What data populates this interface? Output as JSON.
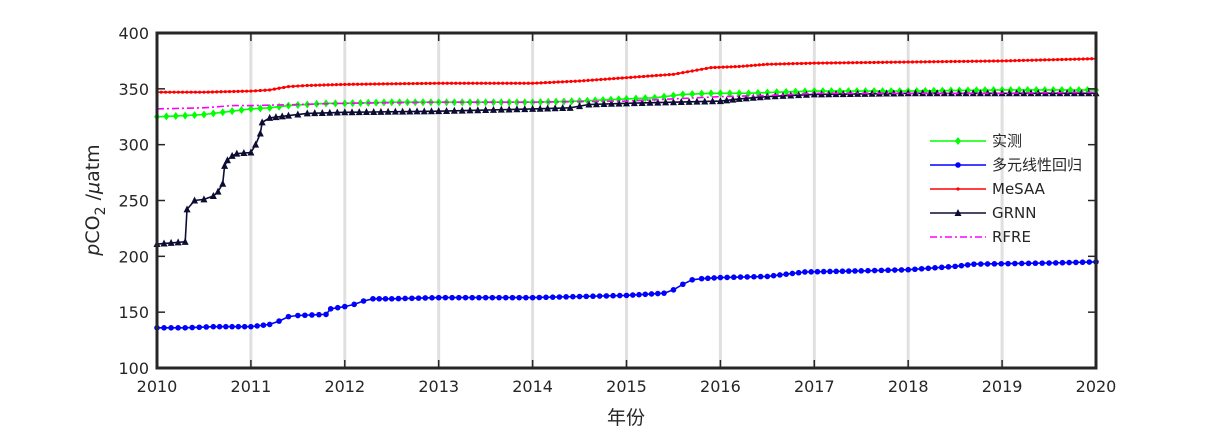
{
  "chart_data": {
    "type": "line",
    "title": "",
    "xlabel": "年份",
    "ylabel_parts": {
      "p": "p",
      "co": "CO",
      "sub": "2",
      "sep": " /",
      "mu": "μ",
      "unit": "atm"
    },
    "xlim": [
      2010,
      2020
    ],
    "ylim": [
      100,
      400
    ],
    "xticks": [
      "2010",
      "2011",
      "2012",
      "2013",
      "2014",
      "2015",
      "2016",
      "2017",
      "2018",
      "2019",
      "2020"
    ],
    "yticks": [
      "100",
      "150",
      "200",
      "250",
      "300",
      "350",
      "400"
    ],
    "grid": "vertical",
    "legend_position": "right",
    "series": [
      {
        "name": "实测",
        "color": "#00ff00",
        "marker": "diamond",
        "dash": "solid",
        "points": [
          [
            2010.0,
            325
          ],
          [
            2010.3,
            326
          ],
          [
            2010.5,
            327
          ],
          [
            2010.7,
            329
          ],
          [
            2010.9,
            331
          ],
          [
            2011.0,
            332
          ],
          [
            2011.2,
            333
          ],
          [
            2011.4,
            335
          ],
          [
            2011.6,
            336
          ],
          [
            2011.8,
            337
          ],
          [
            2012.0,
            337
          ],
          [
            2012.5,
            338
          ],
          [
            2013.0,
            338
          ],
          [
            2013.5,
            338
          ],
          [
            2014.0,
            338
          ],
          [
            2014.5,
            339
          ],
          [
            2015.0,
            341
          ],
          [
            2015.3,
            342
          ],
          [
            2015.6,
            345
          ],
          [
            2015.9,
            346
          ],
          [
            2016.3,
            346
          ],
          [
            2016.6,
            347
          ],
          [
            2017.0,
            348
          ],
          [
            2018.0,
            348
          ],
          [
            2019.0,
            349
          ],
          [
            2020.0,
            349
          ]
        ]
      },
      {
        "name": "多元线性回归",
        "color": "#0000ff",
        "marker": "circle",
        "dash": "solid",
        "points": [
          [
            2010.0,
            136
          ],
          [
            2010.3,
            136
          ],
          [
            2010.6,
            137
          ],
          [
            2011.0,
            137
          ],
          [
            2011.2,
            139
          ],
          [
            2011.3,
            142
          ],
          [
            2011.4,
            146
          ],
          [
            2011.5,
            147
          ],
          [
            2011.8,
            148
          ],
          [
            2011.85,
            153
          ],
          [
            2012.0,
            155
          ],
          [
            2012.1,
            157
          ],
          [
            2012.2,
            160
          ],
          [
            2012.3,
            162
          ],
          [
            2012.5,
            162
          ],
          [
            2013.0,
            163
          ],
          [
            2014.0,
            163
          ],
          [
            2014.5,
            164
          ],
          [
            2015.0,
            165
          ],
          [
            2015.4,
            167
          ],
          [
            2015.5,
            170
          ],
          [
            2015.6,
            175
          ],
          [
            2015.7,
            179
          ],
          [
            2015.8,
            180
          ],
          [
            2016.0,
            181
          ],
          [
            2016.5,
            182
          ],
          [
            2016.7,
            184
          ],
          [
            2016.9,
            186
          ],
          [
            2017.5,
            187
          ],
          [
            2018.0,
            188
          ],
          [
            2018.5,
            191
          ],
          [
            2018.7,
            193
          ],
          [
            2019.5,
            194
          ],
          [
            2020.0,
            195
          ]
        ]
      },
      {
        "name": "MeSAA",
        "color": "#ff0000",
        "marker": "dot",
        "dash": "solid",
        "points": [
          [
            2010.0,
            347
          ],
          [
            2010.5,
            347
          ],
          [
            2011.0,
            348
          ],
          [
            2011.2,
            349
          ],
          [
            2011.4,
            352
          ],
          [
            2011.6,
            353
          ],
          [
            2012.0,
            354
          ],
          [
            2013.0,
            355
          ],
          [
            2014.0,
            355
          ],
          [
            2014.5,
            357
          ],
          [
            2015.0,
            360
          ],
          [
            2015.5,
            363
          ],
          [
            2015.7,
            366
          ],
          [
            2015.9,
            369
          ],
          [
            2016.2,
            370
          ],
          [
            2016.5,
            372
          ],
          [
            2017.0,
            373
          ],
          [
            2018.0,
            374
          ],
          [
            2019.0,
            375
          ],
          [
            2020.0,
            377
          ]
        ]
      },
      {
        "name": "GRNN",
        "color": "#0d0d33",
        "marker": "triangle",
        "dash": "solid",
        "points": [
          [
            2010.0,
            211
          ],
          [
            2010.3,
            213
          ],
          [
            2010.32,
            242
          ],
          [
            2010.4,
            250
          ],
          [
            2010.5,
            251
          ],
          [
            2010.6,
            254
          ],
          [
            2010.65,
            258
          ],
          [
            2010.7,
            265
          ],
          [
            2010.72,
            281
          ],
          [
            2010.75,
            286
          ],
          [
            2010.8,
            290
          ],
          [
            2010.85,
            292
          ],
          [
            2011.0,
            293
          ],
          [
            2011.05,
            300
          ],
          [
            2011.1,
            310
          ],
          [
            2011.12,
            320
          ],
          [
            2011.2,
            324
          ],
          [
            2011.4,
            326
          ],
          [
            2011.6,
            328
          ],
          [
            2012.0,
            329
          ],
          [
            2013.0,
            330
          ],
          [
            2013.5,
            331
          ],
          [
            2014.0,
            332
          ],
          [
            2014.4,
            333
          ],
          [
            2014.6,
            336
          ],
          [
            2015.0,
            337
          ],
          [
            2015.5,
            338
          ],
          [
            2016.0,
            339
          ],
          [
            2016.2,
            341
          ],
          [
            2016.5,
            343
          ],
          [
            2017.0,
            345
          ],
          [
            2018.0,
            346
          ],
          [
            2019.0,
            346
          ],
          [
            2020.0,
            346
          ]
        ]
      },
      {
        "name": "RFRE",
        "color": "#ff00ff",
        "marker": "none",
        "dash": "dashdot",
        "points": [
          [
            2010.0,
            332
          ],
          [
            2010.5,
            333
          ],
          [
            2010.8,
            335
          ],
          [
            2011.0,
            335
          ],
          [
            2011.5,
            336
          ],
          [
            2012.0,
            337
          ],
          [
            2013.0,
            338
          ],
          [
            2014.0,
            338
          ],
          [
            2015.0,
            339
          ],
          [
            2016.0,
            343
          ],
          [
            2016.5,
            344
          ],
          [
            2017.0,
            346
          ],
          [
            2018.0,
            346
          ],
          [
            2019.0,
            346
          ],
          [
            2020.0,
            347
          ]
        ]
      }
    ]
  }
}
